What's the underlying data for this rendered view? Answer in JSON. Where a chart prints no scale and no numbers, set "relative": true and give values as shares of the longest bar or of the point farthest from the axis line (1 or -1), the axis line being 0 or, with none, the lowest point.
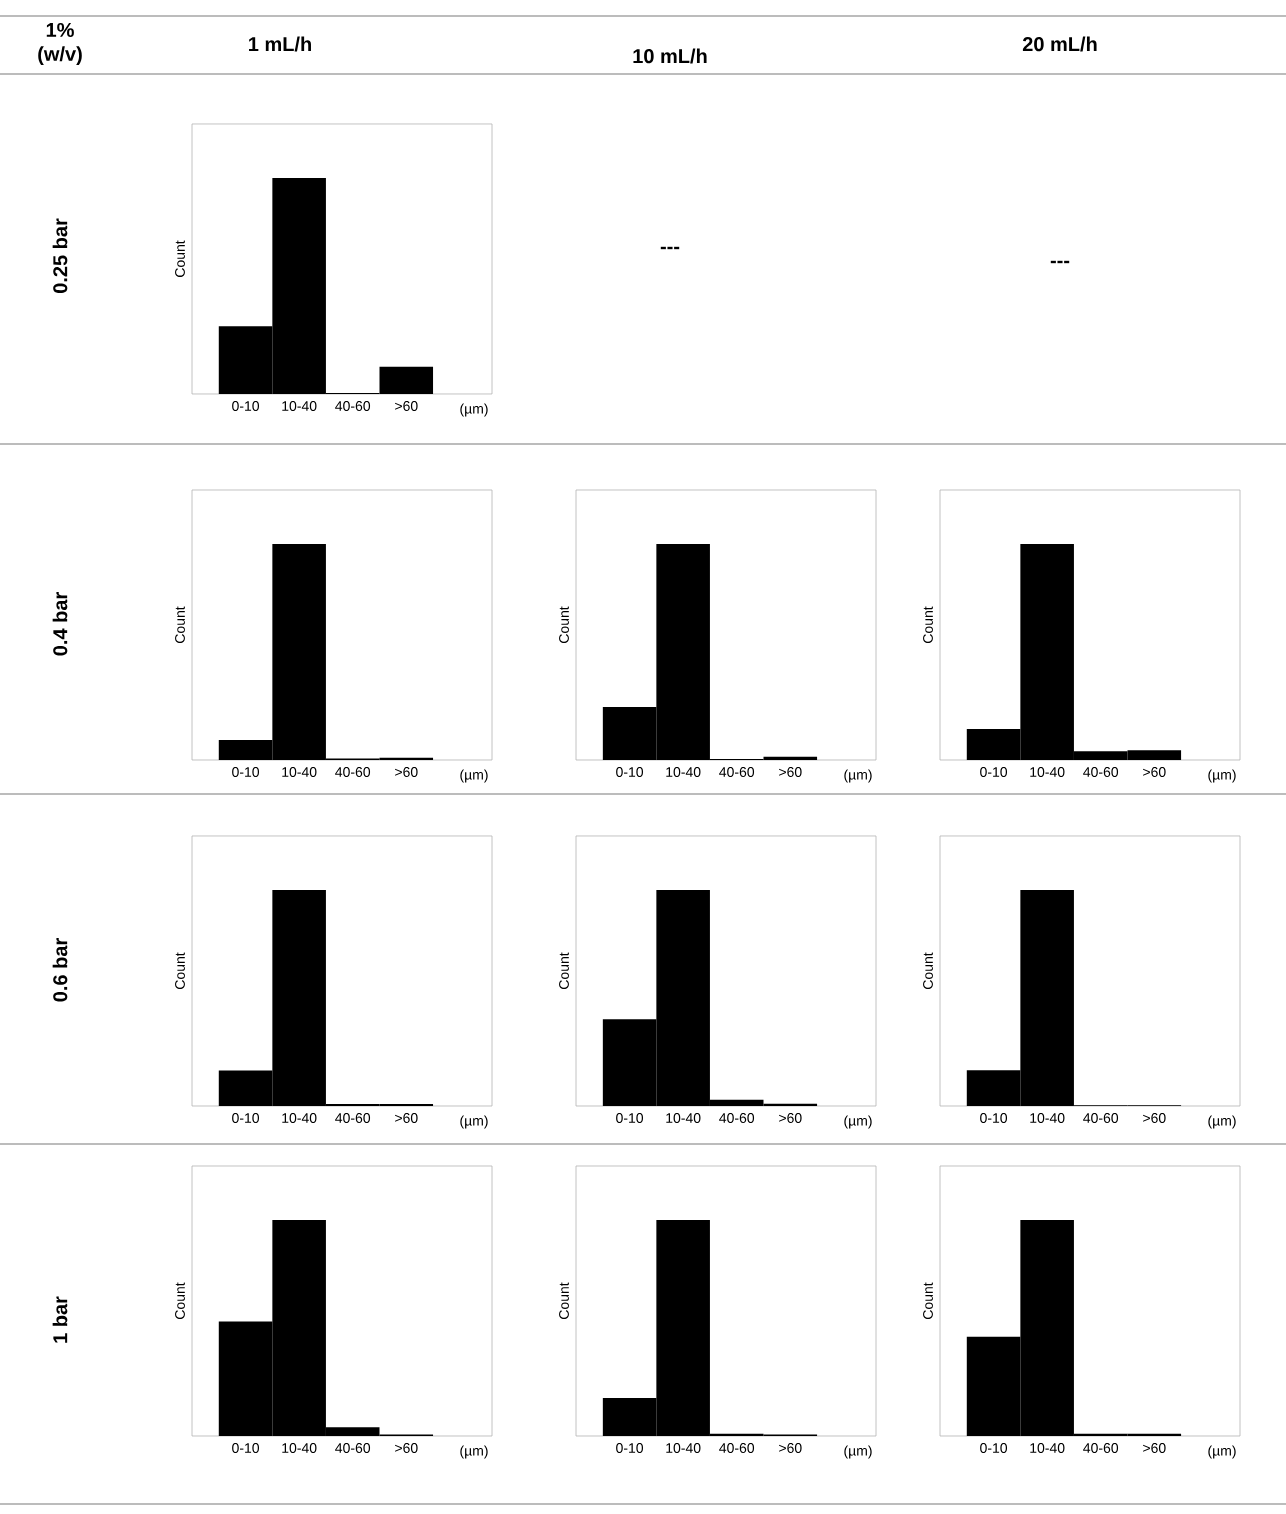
{
  "chart_data": [
    {
      "type": "other",
      "annotations": [
        "1% (w/v)",
        "1 mL/h",
        "10 mL/h",
        "20 mL/h",
        "0.25 bar",
        "0.4 bar",
        "0.6 bar",
        "1 bar",
        "---",
        "---"
      ]
    },
    {
      "type": "bar",
      "categories": [
        "0-10",
        "10-40",
        "40-60",
        ">60"
      ],
      "values": [
        0.314,
        1,
        0.005,
        0.126
      ],
      "relative": true,
      "color": "#000000",
      "xlabel": "(µm)",
      "ylabel": "Count"
    },
    {
      "type": "bar",
      "categories": [
        "0-10",
        "10-40",
        "40-60",
        ">60"
      ],
      "values": [
        0.093,
        1,
        0.007,
        0.01
      ],
      "relative": true,
      "color": "#000000",
      "xlabel": "(µm)",
      "ylabel": "Count"
    },
    {
      "type": "bar",
      "categories": [
        "0-10",
        "10-40",
        "40-60",
        ">60"
      ],
      "values": [
        0.245,
        1,
        0.005,
        0.015
      ],
      "relative": true,
      "color": "#000000",
      "xlabel": "(µm)",
      "ylabel": "Count"
    },
    {
      "type": "bar",
      "categories": [
        "0-10",
        "10-40",
        "40-60",
        ">60"
      ],
      "values": [
        0.143,
        1,
        0.04,
        0.045
      ],
      "relative": true,
      "color": "#000000",
      "xlabel": "(µm)",
      "ylabel": "Count"
    },
    {
      "type": "bar",
      "categories": [
        "0-10",
        "10-40",
        "40-60",
        ">60"
      ],
      "values": [
        0.164,
        1,
        0.009,
        0.009
      ],
      "relative": true,
      "color": "#000000",
      "xlabel": "(µm)",
      "ylabel": "Count"
    },
    {
      "type": "bar",
      "categories": [
        "0-10",
        "10-40",
        "40-60",
        ">60"
      ],
      "values": [
        0.401,
        1,
        0.029,
        0.01
      ],
      "relative": true,
      "color": "#000000",
      "xlabel": "(µm)",
      "ylabel": "Count"
    },
    {
      "type": "bar",
      "categories": [
        "0-10",
        "10-40",
        "40-60",
        ">60"
      ],
      "values": [
        0.166,
        1,
        0.004,
        0.004
      ],
      "relative": true,
      "color": "#000000",
      "xlabel": "(µm)",
      "ylabel": "Count"
    },
    {
      "type": "bar",
      "categories": [
        "0-10",
        "10-40",
        "40-60",
        ">60"
      ],
      "values": [
        0.53,
        1,
        0.04,
        0.007
      ],
      "relative": true,
      "color": "#000000",
      "xlabel": "(µm)",
      "ylabel": "Count"
    },
    {
      "type": "bar",
      "categories": [
        "0-10",
        "10-40",
        "40-60",
        ">60"
      ],
      "values": [
        0.176,
        1,
        0.01,
        0.007
      ],
      "relative": true,
      "color": "#000000",
      "xlabel": "(µm)",
      "ylabel": "Count"
    },
    {
      "type": "bar",
      "categories": [
        "0-10",
        "10-40",
        "40-60",
        ">60"
      ],
      "values": [
        0.46,
        1,
        0.01,
        0.01
      ],
      "relative": true,
      "color": "#000000",
      "xlabel": "(µm)",
      "ylabel": "Count"
    }
  ]
}
